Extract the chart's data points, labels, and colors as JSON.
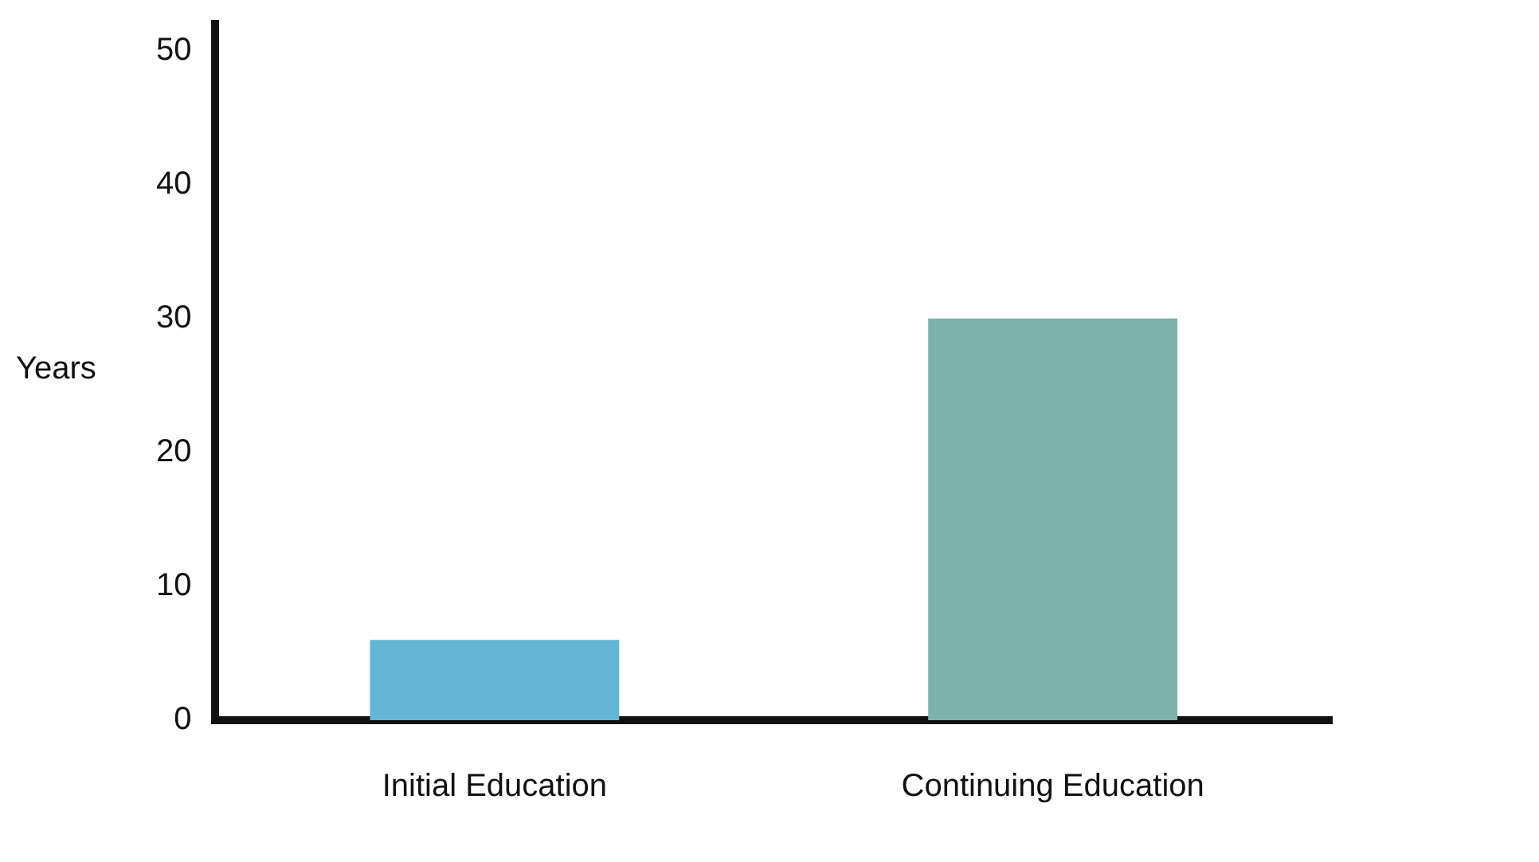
{
  "chart_data": {
    "type": "bar",
    "ylabel": "Years",
    "categories": [
      "Initial Education",
      "Continuing Education"
    ],
    "values": [
      6,
      30
    ],
    "colors": [
      "#62b6d3",
      "#7db2ab"
    ],
    "ylim": [
      0,
      52
    ],
    "yticks": [
      0,
      10,
      20,
      30,
      40,
      50
    ],
    "grid": false
  }
}
